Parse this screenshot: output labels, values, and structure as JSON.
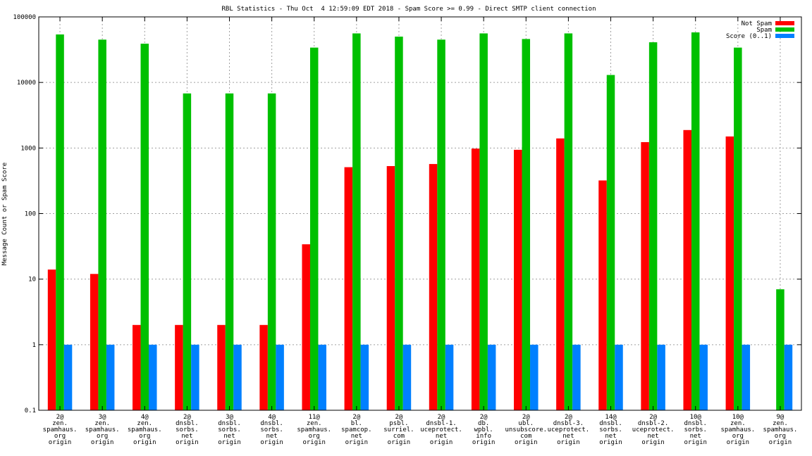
{
  "chart_data": {
    "type": "bar",
    "title": "RBL Statistics - Thu Oct  4 12:59:09 EDT 2018 - Spam Score >= 0.99 - Direct SMTP client connection",
    "xlabel": "",
    "ylabel": "Message Count or Spam Score",
    "yscale": "log",
    "ylim": [
      0.1,
      100000
    ],
    "yticks": [
      "0.1",
      "1",
      "10",
      "100",
      "1000",
      "10000",
      "100000"
    ],
    "grid": true,
    "legend_position": "top-right",
    "categories": [
      [
        "2@",
        "zen.",
        "spamhaus.",
        "org",
        "origin"
      ],
      [
        "3@",
        "zen.",
        "spamhaus.",
        "org",
        "origin"
      ],
      [
        "4@",
        "zen.",
        "spamhaus.",
        "org",
        "origin"
      ],
      [
        "2@",
        "dnsbl.",
        "sorbs.",
        "net",
        "origin"
      ],
      [
        "3@",
        "dnsbl.",
        "sorbs.",
        "net",
        "origin"
      ],
      [
        "4@",
        "dnsbl.",
        "sorbs.",
        "net",
        "origin"
      ],
      [
        "11@",
        "zen.",
        "spamhaus.",
        "org",
        "origin"
      ],
      [
        "2@",
        "bl.",
        "spamcop.",
        "net",
        "origin"
      ],
      [
        "2@",
        "psbl.",
        "surriel.",
        "com",
        "origin"
      ],
      [
        "2@",
        "dnsbl-1.",
        "uceprotect.",
        "net",
        "origin"
      ],
      [
        "2@",
        "db.",
        "wpbl.",
        "info",
        "origin"
      ],
      [
        "2@",
        "ubl.",
        "unsubscore.",
        "com",
        "origin"
      ],
      [
        "2@",
        "dnsbl-3.",
        "uceprotect.",
        "net",
        "origin"
      ],
      [
        "14@",
        "dnsbl.",
        "sorbs.",
        "net",
        "origin"
      ],
      [
        "2@",
        "dnsbl-2.",
        "uceprotect.",
        "net",
        "origin"
      ],
      [
        "10@",
        "dnsbl.",
        "sorbs.",
        "net",
        "origin"
      ],
      [
        "10@",
        "zen.",
        "spamhaus.",
        "org",
        "origin"
      ],
      [
        "9@",
        "zen.",
        "spamhaus.",
        "org",
        "origin"
      ]
    ],
    "series": [
      {
        "name": "Not Spam",
        "color": "#ff0000",
        "values": [
          14,
          12,
          2,
          2,
          2,
          2,
          34,
          510,
          530,
          570,
          980,
          940,
          1400,
          320,
          1230,
          1880,
          1500,
          null
        ]
      },
      {
        "name": "Spam",
        "color": "#00c000",
        "values": [
          54000,
          45000,
          39000,
          6800,
          6800,
          6800,
          34000,
          56000,
          50000,
          45000,
          56000,
          46000,
          56000,
          13000,
          41000,
          58000,
          34000,
          7
        ]
      },
      {
        "name": "Score (0..1)",
        "color": "#0080ff",
        "values": [
          1,
          1,
          1,
          1,
          1,
          1,
          1,
          1,
          1,
          1,
          1,
          1,
          1,
          1,
          1,
          1,
          1,
          1
        ]
      }
    ]
  }
}
